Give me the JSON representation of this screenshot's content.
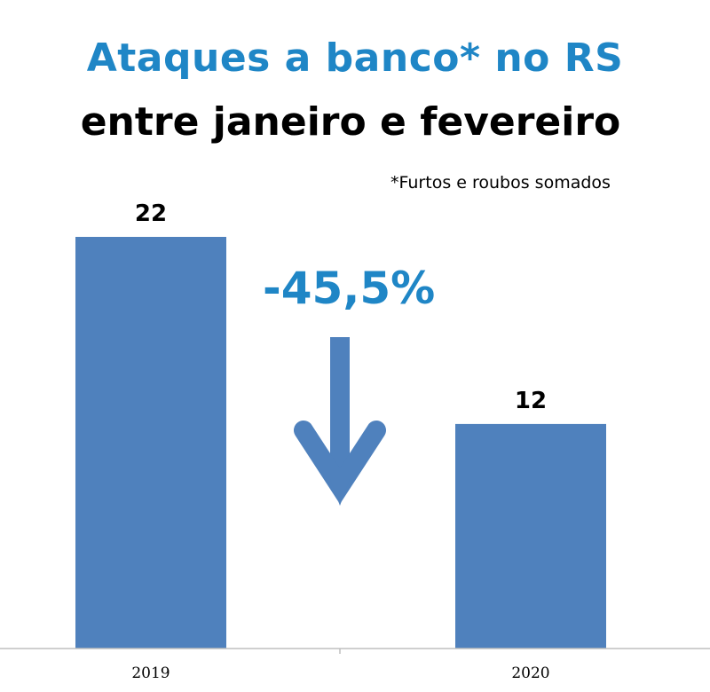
{
  "title": "Ataques a banco* no RS",
  "subtitle": "entre janeiro e fevereiro",
  "footnote": "*Furtos e roubos somados",
  "change_label": "-45,5%",
  "colors": {
    "bar": "#4f81bd",
    "title": "#1f86c6",
    "arrow": "#4f81bd"
  },
  "chart_data": {
    "type": "bar",
    "categories": [
      "2019",
      "2020"
    ],
    "values": [
      22,
      12
    ],
    "data_labels": [
      "22",
      "12"
    ],
    "title": "Ataques a banco* no RS",
    "subtitle": "entre janeiro e fevereiro",
    "xlabel": "",
    "ylabel": "",
    "ylim": [
      0,
      22
    ],
    "grid": false,
    "legend": "none",
    "annotations": [
      "-45,5%",
      "*Furtos e roubos somados"
    ]
  }
}
